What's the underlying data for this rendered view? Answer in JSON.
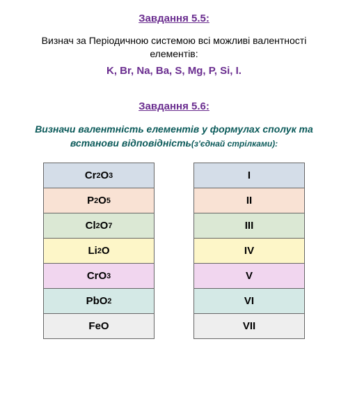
{
  "task1": {
    "heading": "Завдання 5.5:",
    "heading_color": "#6a2d8f",
    "heading_fontsize": 15,
    "desc": "Визнач за Періодичною системою всі можливі валентності елементів:",
    "desc_color": "#000000",
    "desc_fontsize": 14,
    "elements": "K, Br, Na, Ba, S, Mg, P, Si, I.",
    "elements_color": "#6a2d8f",
    "elements_fontsize": 15
  },
  "task2": {
    "heading": "Завдання 5.6:",
    "heading_color": "#6a2d8f",
    "heading_fontsize": 15,
    "desc_main": "Визначи валентність елементів у формулах  сполук  та встанови відповідність",
    "desc_paren": "(з'єднай стрілками):",
    "desc_color": "#0b5a5a",
    "desc_fontsize": 14,
    "paren_fontsize": 12
  },
  "table": {
    "cell_fontsize": 15,
    "border_color": "#666666",
    "left": [
      {
        "html": "Cr <sub>2</sub>O<sub>3</sub>",
        "bg": "#d4dde8"
      },
      {
        "html": "P<sub>2</sub>O<sub>5</sub>",
        "bg": "#f9e2d4"
      },
      {
        "html": "Cl<sub>2</sub>O<sub>7</sub>",
        "bg": "#dbe8d4"
      },
      {
        "html": "Li<sub>2</sub>O",
        "bg": "#fdf6c8"
      },
      {
        "html": "CrO<sub>3</sub>",
        "bg": "#f1d6ef"
      },
      {
        "html": "PbO<sub>2</sub>",
        "bg": "#d4e9e6"
      },
      {
        "html": "FeO",
        "bg": "#eeeeee"
      }
    ],
    "right": [
      {
        "text": "I",
        "bg": "#d4dde8"
      },
      {
        "text": "II",
        "bg": "#f9e2d4"
      },
      {
        "text": "III",
        "bg": "#dbe8d4"
      },
      {
        "text": "IV",
        "bg": "#fdf6c8"
      },
      {
        "text": "V",
        "bg": "#f1d6ef"
      },
      {
        "text": "VI",
        "bg": "#d4e9e6"
      },
      {
        "text": "VII",
        "bg": "#eeeeee"
      }
    ]
  }
}
